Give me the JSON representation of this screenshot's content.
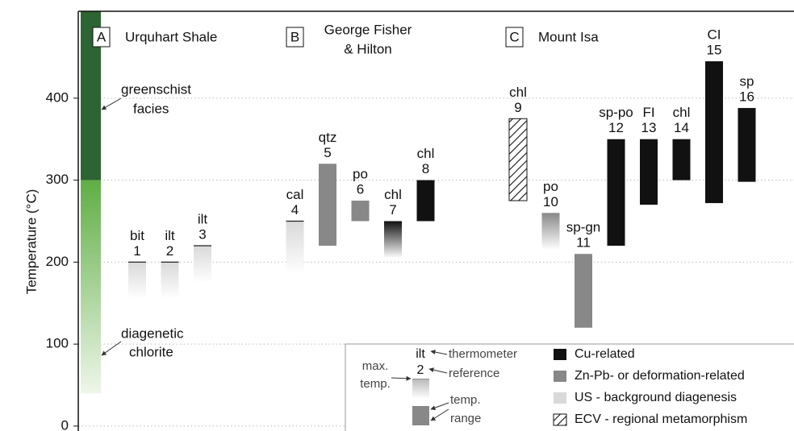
{
  "chart_data": {
    "type": "range",
    "y_label": "Temperature (°C)",
    "ylim": [
      -6,
      506
    ],
    "yticks": [
      0,
      100,
      200,
      300,
      400
    ],
    "grid": true,
    "groups": [
      {
        "letter": "A",
        "name": [
          "Urquhart Shale"
        ]
      },
      {
        "letter": "B",
        "name": [
          "George Fisher",
          "& Hilton"
        ]
      },
      {
        "letter": "C",
        "name": [
          "Mount Isa"
        ]
      }
    ],
    "facies": {
      "top": 506,
      "boundary": 300,
      "bottom": 40,
      "upper": [
        "greenschist",
        "facies"
      ],
      "lower": [
        "diagenetic",
        "chlorite"
      ],
      "upper_color": "#2c6531",
      "lower_color": "#5fae44"
    },
    "series": [
      {
        "name": "Cu-related",
        "color": "#111111"
      },
      {
        "name": "Zn-Pb- or deformation-related",
        "color": "#888888"
      },
      {
        "name": "US - background diagenesis",
        "color": "#d9d9d9"
      },
      {
        "name": "ECV - regional metamorphism",
        "color": "#111111",
        "hatch": true
      }
    ],
    "bars": [
      {
        "label": "bit",
        "ref": 1,
        "group": 0,
        "series": 2,
        "top": 200,
        "bottom": 155,
        "fade": true
      },
      {
        "label": "ilt",
        "ref": 2,
        "group": 0,
        "series": 2,
        "top": 200,
        "bottom": 155,
        "fade": true
      },
      {
        "label": "ilt",
        "ref": 3,
        "group": 0,
        "series": 2,
        "top": 220,
        "bottom": 175,
        "fade": true
      },
      {
        "label": "cal",
        "ref": 4,
        "group": 1,
        "series": 2,
        "top": 250,
        "bottom": 185,
        "fade": true
      },
      {
        "label": "qtz",
        "ref": 5,
        "group": 1,
        "series": 1,
        "top": 320,
        "bottom": 220,
        "fade": false
      },
      {
        "label": "po",
        "ref": 6,
        "group": 1,
        "series": 1,
        "top": 275,
        "bottom": 250,
        "fade": false
      },
      {
        "label": "chl",
        "ref": 7,
        "group": 1,
        "series": 0,
        "top": 250,
        "bottom": 205,
        "fade": true
      },
      {
        "label": "chl",
        "ref": 8,
        "group": 1,
        "series": 0,
        "top": 300,
        "bottom": 250,
        "fade": false
      },
      {
        "label": "chl",
        "ref": 9,
        "group": 2,
        "series": 3,
        "top": 375,
        "bottom": 275,
        "fade": false
      },
      {
        "label": "po",
        "ref": 10,
        "group": 2,
        "series": 1,
        "top": 260,
        "bottom": 215,
        "fade": true
      },
      {
        "label": "sp-gn",
        "ref": 11,
        "group": 2,
        "series": 1,
        "top": 210,
        "bottom": 120,
        "fade": false
      },
      {
        "label": "sp-po",
        "ref": 12,
        "group": 2,
        "series": 0,
        "top": 350,
        "bottom": 220,
        "fade": false
      },
      {
        "label": "FI",
        "ref": 13,
        "group": 2,
        "series": 0,
        "top": 350,
        "bottom": 270,
        "fade": false
      },
      {
        "label": "chl",
        "ref": 14,
        "group": 2,
        "series": 0,
        "top": 350,
        "bottom": 300,
        "fade": false
      },
      {
        "label": "CI",
        "ref": 15,
        "group": 2,
        "series": 0,
        "top": 445,
        "bottom": 272,
        "fade": false
      },
      {
        "label": "sp",
        "ref": 16,
        "group": 2,
        "series": 0,
        "top": 388,
        "bottom": 298,
        "fade": false
      }
    ],
    "key": {
      "mineral": "ilt",
      "ref": "2",
      "reference": [
        "thermometer",
        "reference"
      ],
      "max": [
        "max.",
        "temp."
      ],
      "range": [
        "temp.",
        "range"
      ]
    }
  }
}
